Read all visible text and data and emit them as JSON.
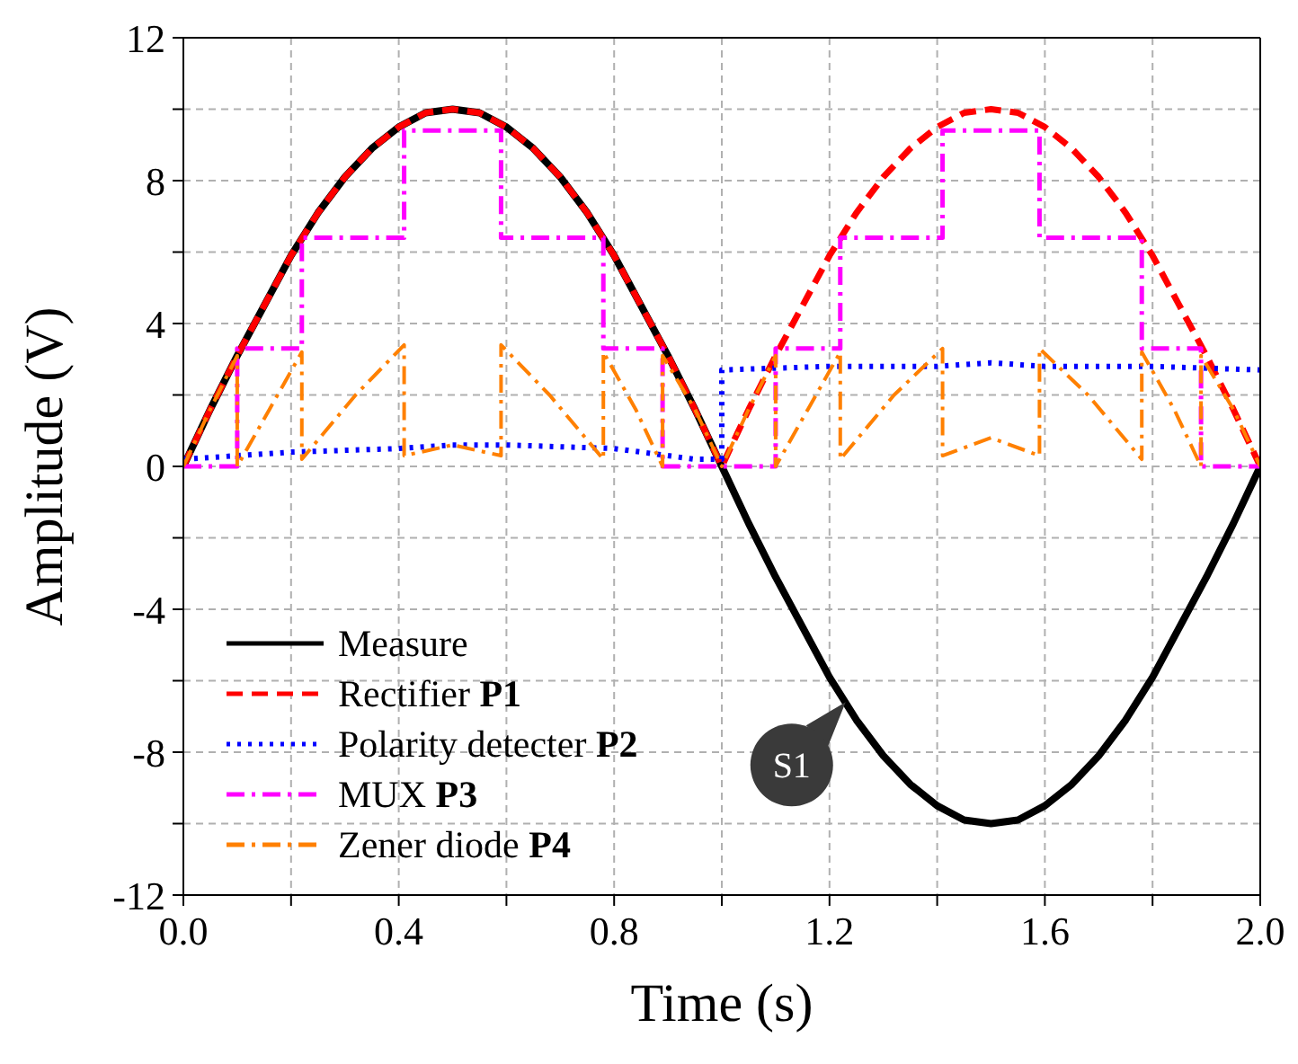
{
  "chart_data": {
    "type": "line",
    "xlabel": "Time (s)",
    "ylabel": "Amplitude (V)",
    "xlim": [
      0,
      2
    ],
    "ylim": [
      -12,
      12
    ],
    "xticks": [
      {
        "value": 0,
        "label": "0.0"
      },
      {
        "value": 0.2,
        "label": null
      },
      {
        "value": 0.4,
        "label": "0.4"
      },
      {
        "value": 0.6,
        "label": null
      },
      {
        "value": 0.8,
        "label": "0.8"
      },
      {
        "value": 1.0,
        "label": null
      },
      {
        "value": 1.2,
        "label": "1.2"
      },
      {
        "value": 1.4,
        "label": null
      },
      {
        "value": 1.6,
        "label": "1.6"
      },
      {
        "value": 1.8,
        "label": null
      },
      {
        "value": 2.0,
        "label": "2.0"
      }
    ],
    "yticks": [
      -12,
      {
        "value": -10,
        "label": null
      },
      -8,
      {
        "value": -6,
        "label": null
      },
      -4,
      {
        "value": -2,
        "label": null
      },
      0,
      {
        "value": 2,
        "label": null
      },
      4,
      {
        "value": 6,
        "label": null
      },
      8,
      {
        "value": 10,
        "label": null
      },
      12
    ],
    "grid": true,
    "legend": "bottom left",
    "marker": "none",
    "series": [
      {
        "name": "Measure",
        "color": "#000000",
        "line_style": "solid",
        "x": [
          0,
          0.05,
          0.1,
          0.15,
          0.2,
          0.25,
          0.3,
          0.35,
          0.4,
          0.45,
          0.5,
          0.55,
          0.6,
          0.65,
          0.7,
          0.75,
          0.8,
          0.85,
          0.9,
          0.95,
          1.0,
          1.05,
          1.1,
          1.15,
          1.2,
          1.25,
          1.3,
          1.35,
          1.4,
          1.45,
          1.5,
          1.55,
          1.6,
          1.65,
          1.7,
          1.75,
          1.8,
          1.85,
          1.9,
          1.95,
          2.0
        ],
        "values": [
          0,
          1.6,
          3.1,
          4.5,
          5.9,
          7.1,
          8.1,
          8.9,
          9.5,
          9.9,
          10.0,
          9.9,
          9.5,
          8.9,
          8.1,
          7.1,
          5.9,
          4.5,
          3.1,
          1.6,
          0,
          -1.6,
          -3.1,
          -4.5,
          -5.9,
          -7.1,
          -8.1,
          -8.9,
          -9.5,
          -9.9,
          -10.0,
          -9.9,
          -9.5,
          -8.9,
          -8.1,
          -7.1,
          -5.9,
          -4.5,
          -3.1,
          -1.6,
          0
        ]
      },
      {
        "name": "Rectifier P1",
        "color": "#ff0000",
        "line_style": "dashed",
        "x": [
          0,
          0.05,
          0.1,
          0.15,
          0.2,
          0.25,
          0.3,
          0.35,
          0.4,
          0.45,
          0.5,
          0.55,
          0.6,
          0.65,
          0.7,
          0.75,
          0.8,
          0.85,
          0.9,
          0.95,
          1.0,
          1.05,
          1.1,
          1.15,
          1.2,
          1.25,
          1.3,
          1.35,
          1.4,
          1.45,
          1.5,
          1.55,
          1.6,
          1.65,
          1.7,
          1.75,
          1.8,
          1.85,
          1.9,
          1.95,
          2.0
        ],
        "values": [
          0,
          1.6,
          3.1,
          4.5,
          5.9,
          7.1,
          8.1,
          8.9,
          9.5,
          9.9,
          10.0,
          9.9,
          9.5,
          8.9,
          8.1,
          7.1,
          5.9,
          4.5,
          3.1,
          1.6,
          0,
          1.6,
          3.1,
          4.5,
          5.9,
          7.1,
          8.1,
          8.9,
          9.5,
          9.9,
          10.0,
          9.9,
          9.5,
          8.9,
          8.1,
          7.1,
          5.9,
          4.5,
          3.1,
          1.6,
          0
        ]
      },
      {
        "name": "Polarity detecter P2",
        "color": "#0000ff",
        "line_style": "dotted",
        "x": [
          0,
          0.2,
          0.4,
          0.5,
          0.6,
          0.8,
          0.95,
          1.0,
          1.0,
          1.2,
          1.4,
          1.5,
          1.6,
          1.8,
          2.0
        ],
        "values": [
          0.2,
          0.4,
          0.5,
          0.6,
          0.6,
          0.5,
          0.2,
          0.2,
          2.7,
          2.8,
          2.8,
          2.9,
          2.8,
          2.8,
          2.7
        ]
      },
      {
        "name": "MUX P3",
        "color": "#ff00ff",
        "line_style": "dashdot",
        "x": [
          0,
          0.1,
          0.1,
          0.22,
          0.22,
          0.41,
          0.41,
          0.59,
          0.59,
          0.78,
          0.78,
          0.89,
          0.89,
          1.1,
          1.1,
          1.22,
          1.22,
          1.41,
          1.41,
          1.59,
          1.59,
          1.78,
          1.78,
          1.89,
          1.89,
          2.0
        ],
        "values": [
          0,
          0,
          3.3,
          3.3,
          6.4,
          6.4,
          9.4,
          9.4,
          6.4,
          6.4,
          3.3,
          3.3,
          0,
          0,
          3.3,
          3.3,
          6.4,
          6.4,
          9.4,
          9.4,
          6.4,
          6.4,
          3.3,
          3.3,
          0,
          0
        ]
      },
      {
        "name": "Zener diode P4",
        "color": "#ff8000",
        "line_style": "dashdot",
        "x": [
          0,
          0.05,
          0.1,
          0.1,
          0.16,
          0.22,
          0.22,
          0.32,
          0.41,
          0.41,
          0.5,
          0.59,
          0.59,
          0.68,
          0.78,
          0.78,
          0.84,
          0.89,
          0.89,
          0.95,
          1.0,
          1.05,
          1.1,
          1.1,
          1.16,
          1.22,
          1.22,
          1.32,
          1.41,
          1.41,
          1.5,
          1.59,
          1.59,
          1.68,
          1.78,
          1.78,
          1.84,
          1.89,
          1.89,
          1.95,
          2.0
        ],
        "values": [
          0,
          1.6,
          3.1,
          0,
          1.6,
          3.2,
          0.2,
          2.0,
          3.4,
          0.3,
          0.6,
          0.3,
          3.4,
          2.0,
          0.2,
          3.2,
          1.6,
          0,
          3.1,
          1.6,
          0,
          1.6,
          3.1,
          0,
          1.6,
          3.2,
          0.2,
          2.0,
          3.3,
          0.3,
          0.8,
          0.3,
          3.3,
          2.0,
          0.2,
          3.2,
          1.6,
          0,
          3.1,
          1.6,
          0
        ]
      }
    ],
    "annotations": [
      {
        "text": "S1",
        "x": 1.23,
        "y": -6.6
      }
    ]
  }
}
